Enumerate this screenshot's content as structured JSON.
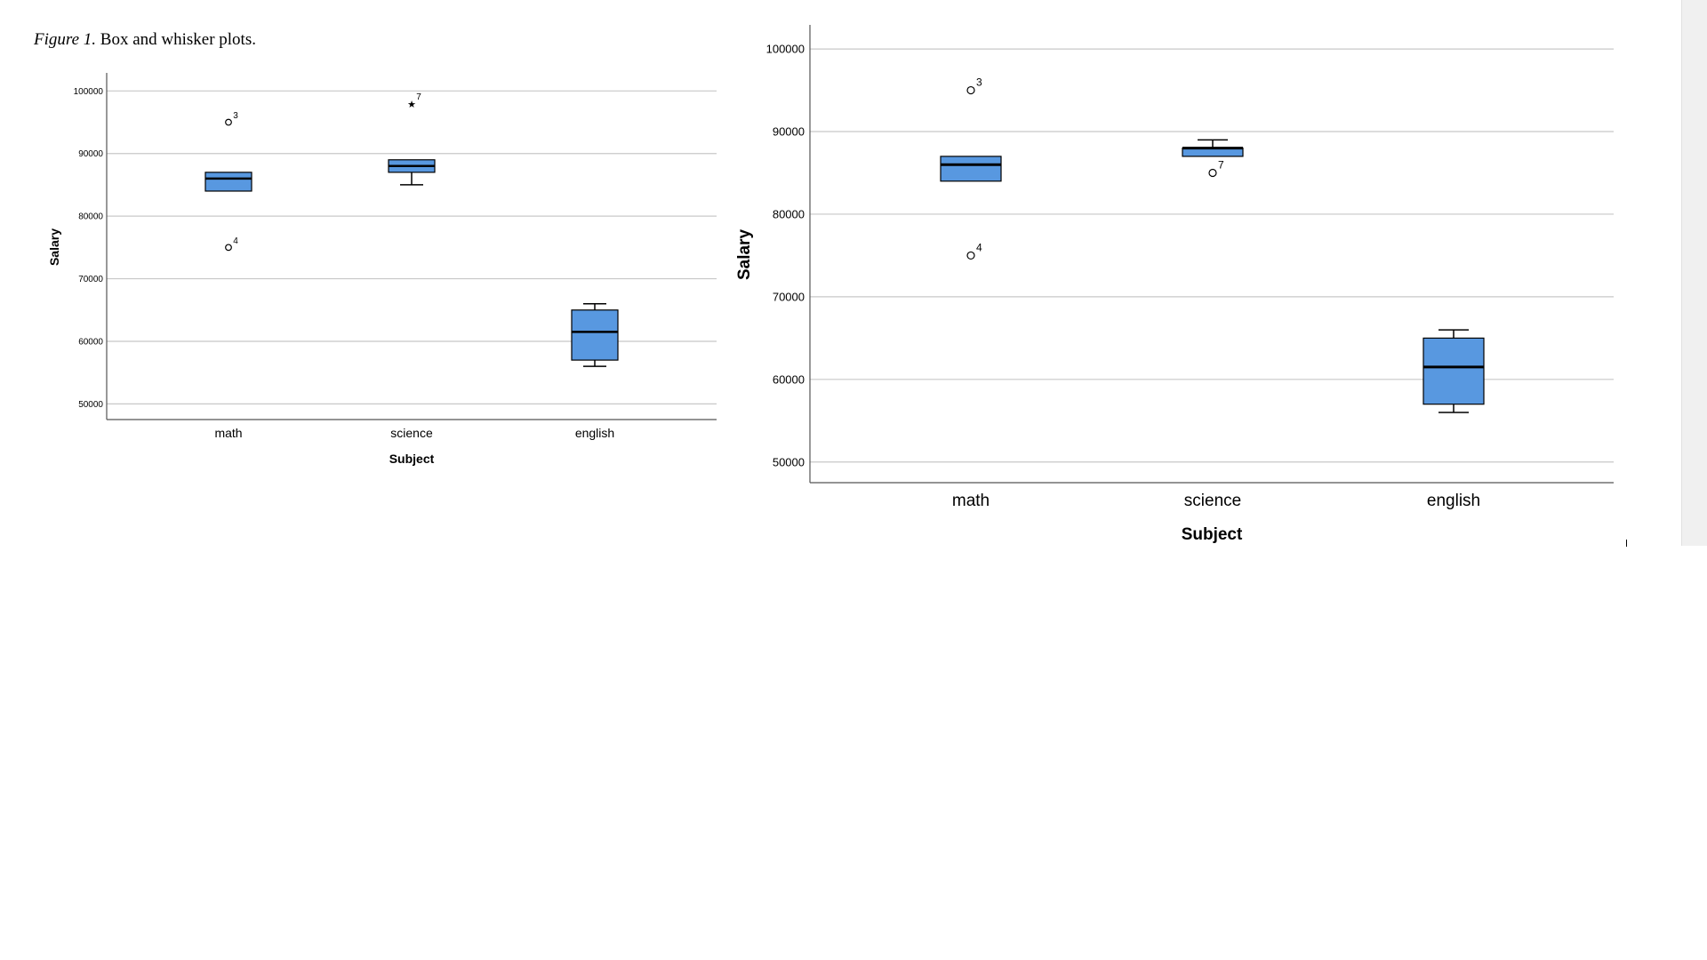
{
  "caption": {
    "label": "Figure 1.",
    "text": " Box and whisker plots."
  },
  "colors": {
    "box_fill": "#5898e0",
    "box_stroke": "#000000",
    "grid": "#c8c8c8",
    "axis": "#555555"
  },
  "chart_data": [
    {
      "type": "box",
      "title": "",
      "xlabel": "Subject",
      "ylabel": "Salary",
      "ylim": [
        47500,
        102600
      ],
      "yticks": [
        50000,
        60000,
        70000,
        80000,
        90000,
        100000
      ],
      "categories": [
        "math",
        "science",
        "english"
      ],
      "grid": true,
      "boxes": [
        {
          "category": "math",
          "whisker_low": 84000,
          "q1": 84000,
          "median": 86000,
          "q3": 87000,
          "whisker_high": 87000
        },
        {
          "category": "science",
          "whisker_low": 85000,
          "q1": 87000,
          "median": 88000,
          "q3": 89000,
          "whisker_high": 89000
        },
        {
          "category": "english",
          "whisker_low": 56000,
          "q1": 57000,
          "median": 61500,
          "q3": 65000,
          "whisker_high": 66000
        }
      ],
      "outliers": [
        {
          "category": "math",
          "value": 95000,
          "label": "3",
          "marker": "circle"
        },
        {
          "category": "math",
          "value": 75000,
          "label": "4",
          "marker": "circle"
        },
        {
          "category": "science",
          "value": 98000,
          "label": "7",
          "marker": "star"
        }
      ]
    },
    {
      "type": "box",
      "title": "",
      "xlabel": "Subject",
      "ylabel": "Salary",
      "ylim": [
        47500,
        102700
      ],
      "yticks": [
        50000,
        60000,
        70000,
        80000,
        90000,
        100000
      ],
      "categories": [
        "math",
        "science",
        "english"
      ],
      "grid": true,
      "boxes": [
        {
          "category": "math",
          "whisker_low": 84000,
          "q1": 84000,
          "median": 86000,
          "q3": 87000,
          "whisker_high": 87000
        },
        {
          "category": "science",
          "whisker_low": 87000,
          "q1": 87000,
          "median": 88000,
          "q3": 88000,
          "whisker_high": 89000
        },
        {
          "category": "english",
          "whisker_low": 56000,
          "q1": 57000,
          "median": 61500,
          "q3": 65000,
          "whisker_high": 66000
        }
      ],
      "outliers": [
        {
          "category": "math",
          "value": 95000,
          "label": "3",
          "marker": "circle"
        },
        {
          "category": "math",
          "value": 75000,
          "label": "4",
          "marker": "circle"
        },
        {
          "category": "science",
          "value": 85000,
          "label": "7",
          "marker": "circle"
        }
      ]
    }
  ]
}
